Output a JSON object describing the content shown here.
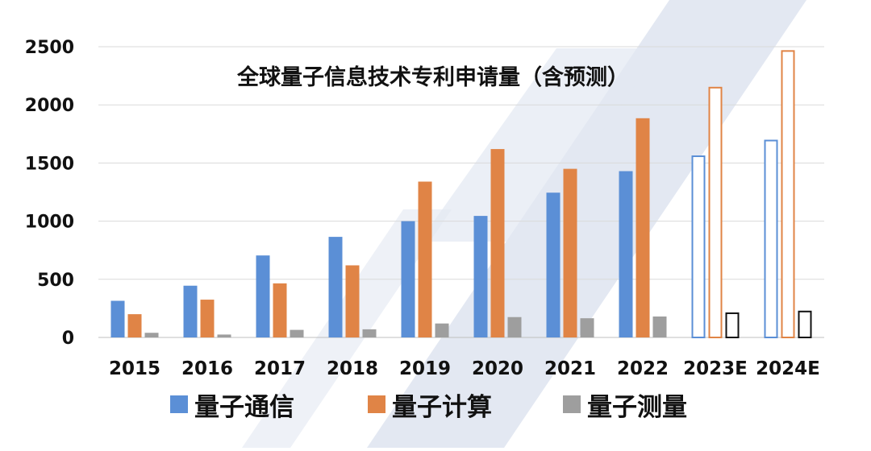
{
  "chart_data": {
    "type": "bar",
    "title": "全球量子信息技术专利申请量（含预测）",
    "categories": [
      "2015",
      "2016",
      "2017",
      "2018",
      "2019",
      "2020",
      "2021",
      "2022",
      "2023E",
      "2024E"
    ],
    "forecast_categories": [
      "2023E",
      "2024E"
    ],
    "series": [
      {
        "name": "量子通信",
        "color": "#5b8fd6",
        "values": [
          315,
          445,
          705,
          865,
          1000,
          1045,
          1245,
          1430,
          1565,
          1700
        ]
      },
      {
        "name": "量子计算",
        "color": "#e08446",
        "values": [
          200,
          325,
          465,
          620,
          1340,
          1620,
          1450,
          1885,
          2155,
          2470
        ]
      },
      {
        "name": "量子测量",
        "color": "#9e9e9e",
        "values": [
          40,
          25,
          65,
          70,
          120,
          175,
          165,
          180,
          215,
          230
        ]
      }
    ],
    "forecast_outline_color": "#111111",
    "ylim": [
      0,
      2500
    ],
    "yticks": [
      0,
      500,
      1000,
      1500,
      2000,
      2500
    ],
    "grid": true,
    "legend_position": "bottom",
    "watermark_color": "#e3e8f2"
  }
}
